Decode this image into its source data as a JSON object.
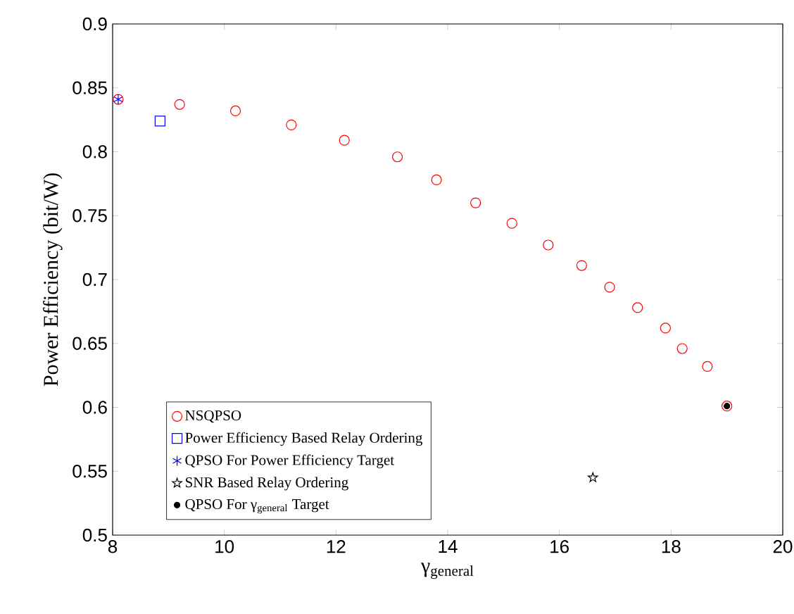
{
  "chart_data": {
    "type": "scatter",
    "xlabel": "γ$_{general}$",
    "ylabel": "Power Efficiency (bit/W)",
    "xlim": [
      8,
      20
    ],
    "ylim": [
      0.5,
      0.9
    ],
    "xticks": [
      8,
      10,
      12,
      14,
      16,
      18,
      20
    ],
    "yticks": [
      0.5,
      0.55,
      0.6,
      0.65,
      0.7,
      0.75,
      0.8,
      0.85,
      0.9
    ],
    "grid": false,
    "legend": "bottom left",
    "series": [
      {
        "name": "NSQPSO",
        "color": "#ff0000",
        "marker": "circle",
        "x": [
          8.1,
          9.2,
          10.2,
          11.2,
          12.15,
          13.1,
          13.8,
          14.5,
          15.15,
          15.8,
          16.4,
          16.9,
          17.4,
          17.9,
          18.2,
          18.65,
          19.0
        ],
        "values": [
          0.841,
          0.837,
          0.832,
          0.821,
          0.809,
          0.796,
          0.778,
          0.76,
          0.744,
          0.727,
          0.711,
          0.694,
          0.678,
          0.662,
          0.646,
          0.632,
          0.601
        ]
      },
      {
        "name": "Power Efficiency Based Relay Ordering",
        "color": "#0000ff",
        "marker": "square",
        "x": [
          8.85
        ],
        "values": [
          0.824
        ]
      },
      {
        "name": "QPSO For Power Efficiency Target",
        "color": "#0000ff",
        "marker": "cross",
        "x": [
          8.1
        ],
        "values": [
          0.841
        ]
      },
      {
        "name": "SNR Based Relay Ordering",
        "color": "#000000",
        "marker": "star",
        "x": [
          16.6
        ],
        "values": [
          0.545
        ]
      },
      {
        "name": "QPSO For γ$_{general}$ Target",
        "color": "#000000",
        "marker": "circle",
        "x": [
          19.0
        ],
        "values": [
          0.601
        ]
      }
    ]
  }
}
